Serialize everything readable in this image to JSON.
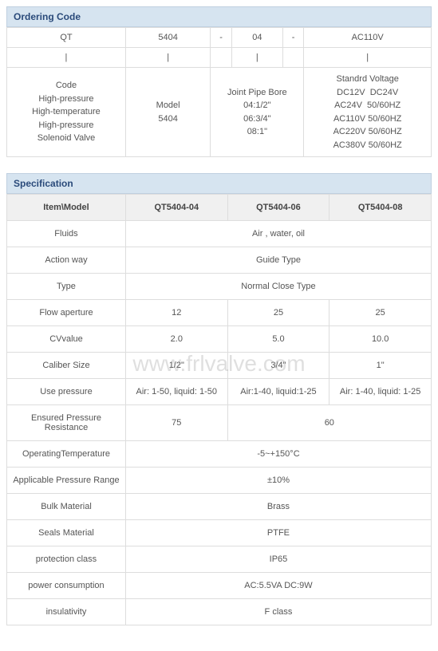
{
  "watermark": "www.frlvalve.com",
  "ordering": {
    "title": "Ordering Code",
    "row1": [
      "QT",
      "5404",
      "-",
      "04",
      "-",
      "AC110V"
    ],
    "row2": [
      "|",
      "|",
      "",
      "|",
      "",
      "|"
    ],
    "row3": {
      "c1": "Code\nHigh-pressure\nHigh-temperature\nHigh-pressure\nSolenoid Valve",
      "c2": "Model\n5404",
      "c3": "Joint Pipe Bore\n04:1/2\"\n06:3/4\"\n08:1\"",
      "c4": "Standrd Voltage\nDC12V  DC24V\nAC24V  50/60HZ\nAC110V 50/60HZ\nAC220V 50/60HZ\nAC380V 50/60HZ"
    }
  },
  "spec": {
    "title": "Specification",
    "headers": [
      "Item\\Model",
      "QT5404-04",
      "QT5404-06",
      "QT5404-08"
    ],
    "rows": [
      {
        "label": "Fluids",
        "span": "Air , water, oil"
      },
      {
        "label": "Action way",
        "span": "Guide Type"
      },
      {
        "label": "Type",
        "span": "Normal Close Type"
      },
      {
        "label": "Flow aperture",
        "cells": [
          "12",
          "25",
          "25"
        ]
      },
      {
        "label": "CVvalue",
        "cells": [
          "2.0",
          "5.0",
          "10.0"
        ]
      },
      {
        "label": "Caliber Size",
        "cells": [
          "1/2\"",
          "3/4\"",
          "1\""
        ]
      },
      {
        "label": "Use pressure",
        "cells": [
          "Air: 1-50, liquid: 1-50",
          "Air:1-40, liquid:1-25",
          "Air: 1-40, liquid: 1-25"
        ]
      },
      {
        "label": "Ensured Pressure Resistance",
        "split": [
          "75",
          "60"
        ]
      },
      {
        "label": "OperatingTemperature",
        "span": "-5~+150°C"
      },
      {
        "label": "Applicable Pressure Range",
        "span": "±10%"
      },
      {
        "label": "Bulk Material",
        "span": "Brass"
      },
      {
        "label": "Seals Material",
        "span": "PTFE"
      },
      {
        "label": "protection class",
        "span": "IP65"
      },
      {
        "label": "power consumption",
        "span": "AC:5.5VA  DC:9W"
      },
      {
        "label": "insulativity",
        "span": "F class"
      }
    ]
  },
  "colors": {
    "header_bg": "#d6e4f0",
    "header_text": "#2a4a7a",
    "border": "#dddddd",
    "th_bg": "#f0f0f0",
    "text": "#555555"
  }
}
